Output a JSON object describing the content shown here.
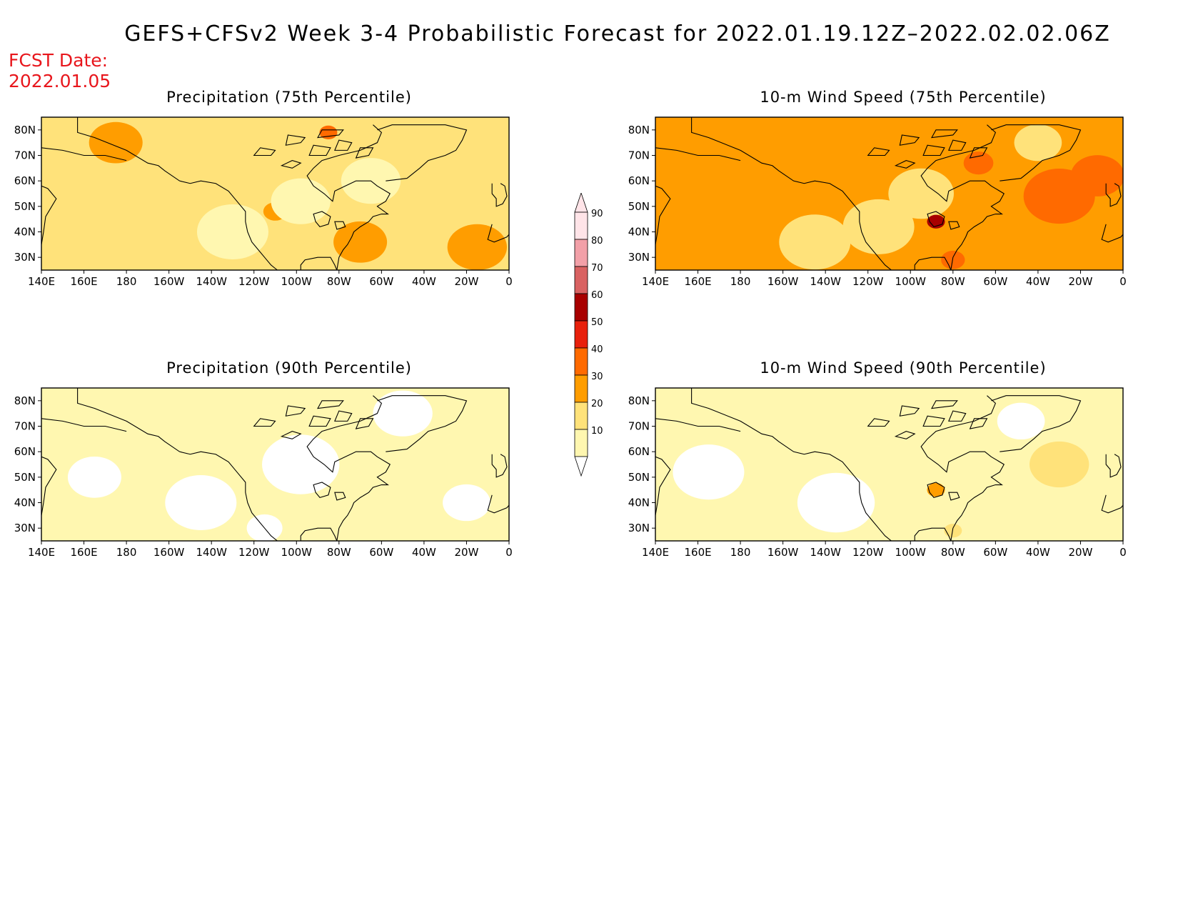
{
  "title": "GEFS+CFSv2 Week 3-4 Probabilistic Forecast for 2022.01.19.12Z–2022.02.02.06Z",
  "fcst_label": "FCST Date:",
  "fcst_date": "2022.01.05",
  "colors": {
    "c0": "#ffffff",
    "c10": "#fff7b0",
    "c20": "#ffe27a",
    "c30": "#ff9d00",
    "c40": "#ff6a00",
    "c50": "#e8200c",
    "c60": "#a80000",
    "c70": "#d96262",
    "c80": "#f2a0a8",
    "c90": "#ffe4e8"
  },
  "colorbar": {
    "levels": [
      "90",
      "80",
      "70",
      "60",
      "50",
      "40",
      "30",
      "20",
      "10"
    ]
  },
  "chart_data": [
    {
      "type": "heatmap",
      "title": "Precipitation (75th Percentile)",
      "x_ticks": [
        "140E",
        "160E",
        "180",
        "160W",
        "140W",
        "120W",
        "100W",
        "80W",
        "60W",
        "40W",
        "20W",
        "0"
      ],
      "y_ticks": [
        "80N",
        "70N",
        "60N",
        "50N",
        "40N",
        "30N"
      ],
      "base_level": 20,
      "blobs": [
        {
          "lon": 175,
          "lat": 75,
          "r": 9,
          "level": 30
        },
        {
          "lon": 250,
          "lat": 48,
          "r": 4,
          "level": 30
        },
        {
          "lon": 290,
          "lat": 36,
          "r": 9,
          "level": 30
        },
        {
          "lon": 345,
          "lat": 34,
          "r": 10,
          "level": 30
        },
        {
          "lon": 275,
          "lat": 79,
          "r": 3,
          "level": 40
        },
        {
          "lon": 230,
          "lat": 40,
          "r": 12,
          "level": 10
        },
        {
          "lon": 262,
          "lat": 52,
          "r": 10,
          "level": 10
        },
        {
          "lon": 295,
          "lat": 60,
          "r": 10,
          "level": 10
        }
      ]
    },
    {
      "type": "heatmap",
      "title": "10-m Wind Speed (75th Percentile)",
      "x_ticks": [
        "140E",
        "160E",
        "180",
        "160W",
        "140W",
        "120W",
        "100W",
        "80W",
        "60W",
        "40W",
        "20W",
        "0"
      ],
      "y_ticks": [
        "80N",
        "70N",
        "60N",
        "50N",
        "40N",
        "30N"
      ],
      "base_level": 30,
      "blobs": [
        {
          "lon": 215,
          "lat": 36,
          "r": 12,
          "level": 20
        },
        {
          "lon": 245,
          "lat": 42,
          "r": 12,
          "level": 20
        },
        {
          "lon": 265,
          "lat": 55,
          "r": 11,
          "level": 20
        },
        {
          "lon": 320,
          "lat": 75,
          "r": 8,
          "level": 20
        },
        {
          "lon": 330,
          "lat": 54,
          "r": 12,
          "level": 40
        },
        {
          "lon": 348,
          "lat": 62,
          "r": 9,
          "level": 40
        },
        {
          "lon": 272,
          "lat": 44,
          "r": 3,
          "level": 60
        },
        {
          "lon": 280,
          "lat": 29,
          "r": 4,
          "level": 40
        },
        {
          "lon": 292,
          "lat": 67,
          "r": 5,
          "level": 40
        }
      ]
    },
    {
      "type": "heatmap",
      "title": "Precipitation (90th Percentile)",
      "x_ticks": [
        "140E",
        "160E",
        "180",
        "160W",
        "140W",
        "120W",
        "100W",
        "80W",
        "60W",
        "40W",
        "20W",
        "0"
      ],
      "y_ticks": [
        "80N",
        "70N",
        "60N",
        "50N",
        "40N",
        "30N"
      ],
      "base_level": 10,
      "blobs": [
        {
          "lon": 215,
          "lat": 40,
          "r": 12,
          "level": 0
        },
        {
          "lon": 262,
          "lat": 55,
          "r": 13,
          "level": 0
        },
        {
          "lon": 310,
          "lat": 75,
          "r": 10,
          "level": 0
        },
        {
          "lon": 165,
          "lat": 50,
          "r": 9,
          "level": 0
        },
        {
          "lon": 340,
          "lat": 40,
          "r": 8,
          "level": 0
        },
        {
          "lon": 245,
          "lat": 30,
          "r": 6,
          "level": 0
        }
      ]
    },
    {
      "type": "heatmap",
      "title": "10-m Wind Speed (90th Percentile)",
      "x_ticks": [
        "140E",
        "160E",
        "180",
        "160W",
        "140W",
        "120W",
        "100W",
        "80W",
        "60W",
        "40W",
        "20W",
        "0"
      ],
      "y_ticks": [
        "80N",
        "70N",
        "60N",
        "50N",
        "40N",
        "30N"
      ],
      "base_level": 10,
      "blobs": [
        {
          "lon": 165,
          "lat": 52,
          "r": 12,
          "level": 0
        },
        {
          "lon": 225,
          "lat": 40,
          "r": 13,
          "level": 0
        },
        {
          "lon": 312,
          "lat": 72,
          "r": 8,
          "level": 0
        },
        {
          "lon": 330,
          "lat": 55,
          "r": 10,
          "level": 20
        },
        {
          "lon": 272,
          "lat": 45,
          "r": 3,
          "level": 30
        },
        {
          "lon": 280,
          "lat": 29,
          "r": 3,
          "level": 20
        }
      ]
    }
  ]
}
